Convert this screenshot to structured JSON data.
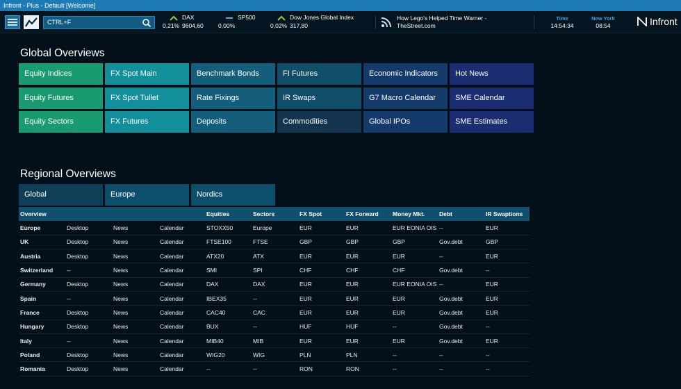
{
  "window": {
    "title": "Infront - Plus - Default [Welcome]"
  },
  "search": {
    "value": "CTRL+F"
  },
  "tickers": [
    {
      "name": "DAX",
      "change": "0,21%",
      "value": "9604,60",
      "trend": "up"
    },
    {
      "name": "SP500",
      "change": "0,00%",
      "value": "",
      "trend": "flat"
    },
    {
      "name": "Dow Jones Global Index",
      "change": "0,02%",
      "value": "317,80",
      "trend": "up"
    }
  ],
  "news": {
    "line1": "How Lego's Helped Time Warner -",
    "line2": "TheStreet.com"
  },
  "clocks": [
    {
      "label": "Time",
      "value": "14:54:34"
    },
    {
      "label": "New York",
      "value": "08:54"
    }
  ],
  "brand": {
    "name": "Infront"
  },
  "global": {
    "title": "Global Overviews",
    "tiles": [
      [
        "Equity Indices",
        "Equity Futures",
        "Equity Sectors"
      ],
      [
        "FX Spot Main",
        "FX Spot Tullet",
        "FX Futures"
      ],
      [
        "Benchmark Bonds",
        "Rate Fixings",
        "Deposits"
      ],
      [
        "FI Futures",
        "IR Swaps",
        "Commodities"
      ],
      [
        "Economic Indicators",
        "G7 Macro Calendar",
        "Global IPOs"
      ],
      [
        "Hot News",
        "SME Calendar",
        "SME Estimates"
      ]
    ]
  },
  "regional": {
    "title": "Regional Overviews",
    "tiles": [
      "Global",
      "Europe",
      "Nordics"
    ]
  },
  "table": {
    "headers": [
      "Overview",
      "",
      "",
      "",
      "Equities",
      "Sectors",
      "FX Spot",
      "FX Forward",
      "Money Mkt.",
      "Debt",
      "IR Swaptions"
    ],
    "rows": [
      [
        "Europe",
        "Desktop",
        "News",
        "Calendar",
        "STOXX50",
        "Europe",
        "EUR",
        "EUR",
        "EUR   EONIA OIS",
        "--",
        "EUR"
      ],
      [
        "UK",
        "Desktop",
        "News",
        "Calendar",
        "FTSE100",
        "FTSE",
        "GBP",
        "GBP",
        "GBP",
        "Gov.debt",
        "GBP"
      ],
      [
        "Austria",
        "Desktop",
        "News",
        "Calendar",
        "ATX20",
        "ATX",
        "EUR",
        "EUR",
        "EUR",
        "--",
        "EUR"
      ],
      [
        "Switzerland",
        "--",
        "News",
        "Calendar",
        "SMI",
        "SPI",
        "CHF",
        "CHF",
        "CHF",
        "Gov.debt",
        "--"
      ],
      [
        "Germany",
        "Desktop",
        "News",
        "Calendar",
        "DAX",
        "DAX",
        "EUR",
        "EUR",
        "EUR   EONIA OIS",
        "--",
        "EUR"
      ],
      [
        "Spain",
        "--",
        "News",
        "Calendar",
        "IBEX35",
        "--",
        "EUR",
        "EUR",
        "EUR",
        "Gov.debt",
        "EUR"
      ],
      [
        "France",
        "Desktop",
        "News",
        "Calendar",
        "CAC40",
        "CAC",
        "EUR",
        "EUR",
        "EUR",
        "Gov.debt",
        "EUR"
      ],
      [
        "Hungary",
        "Desktop",
        "News",
        "Calendar",
        "BUX",
        "--",
        "HUF",
        "HUF",
        "--",
        "Gov.debt",
        "--"
      ],
      [
        "Italy",
        "--",
        "News",
        "Calendar",
        "MIB40",
        "MIB",
        "EUR",
        "EUR",
        "EUR",
        "Gov.debt",
        "EUR"
      ],
      [
        "Poland",
        "Desktop",
        "News",
        "Calendar",
        "WIG20",
        "WIG",
        "PLN",
        "PLN",
        "--",
        "--",
        "--"
      ],
      [
        "Romania",
        "Desktop",
        "News",
        "Calendar",
        "--",
        "--",
        "RON",
        "RON",
        "--",
        "--",
        "--"
      ]
    ]
  },
  "colors": {
    "accent_up": "#8fd14f",
    "accent_flat": "#4cb0e8",
    "titlebar": "#1e7ab3",
    "background": "#03101a"
  },
  "icons": [
    "menu-icon",
    "chart-icon",
    "search-icon",
    "up-arrow-icon",
    "flat-dash-icon",
    "rss-icon",
    "infront-logo-icon"
  ]
}
